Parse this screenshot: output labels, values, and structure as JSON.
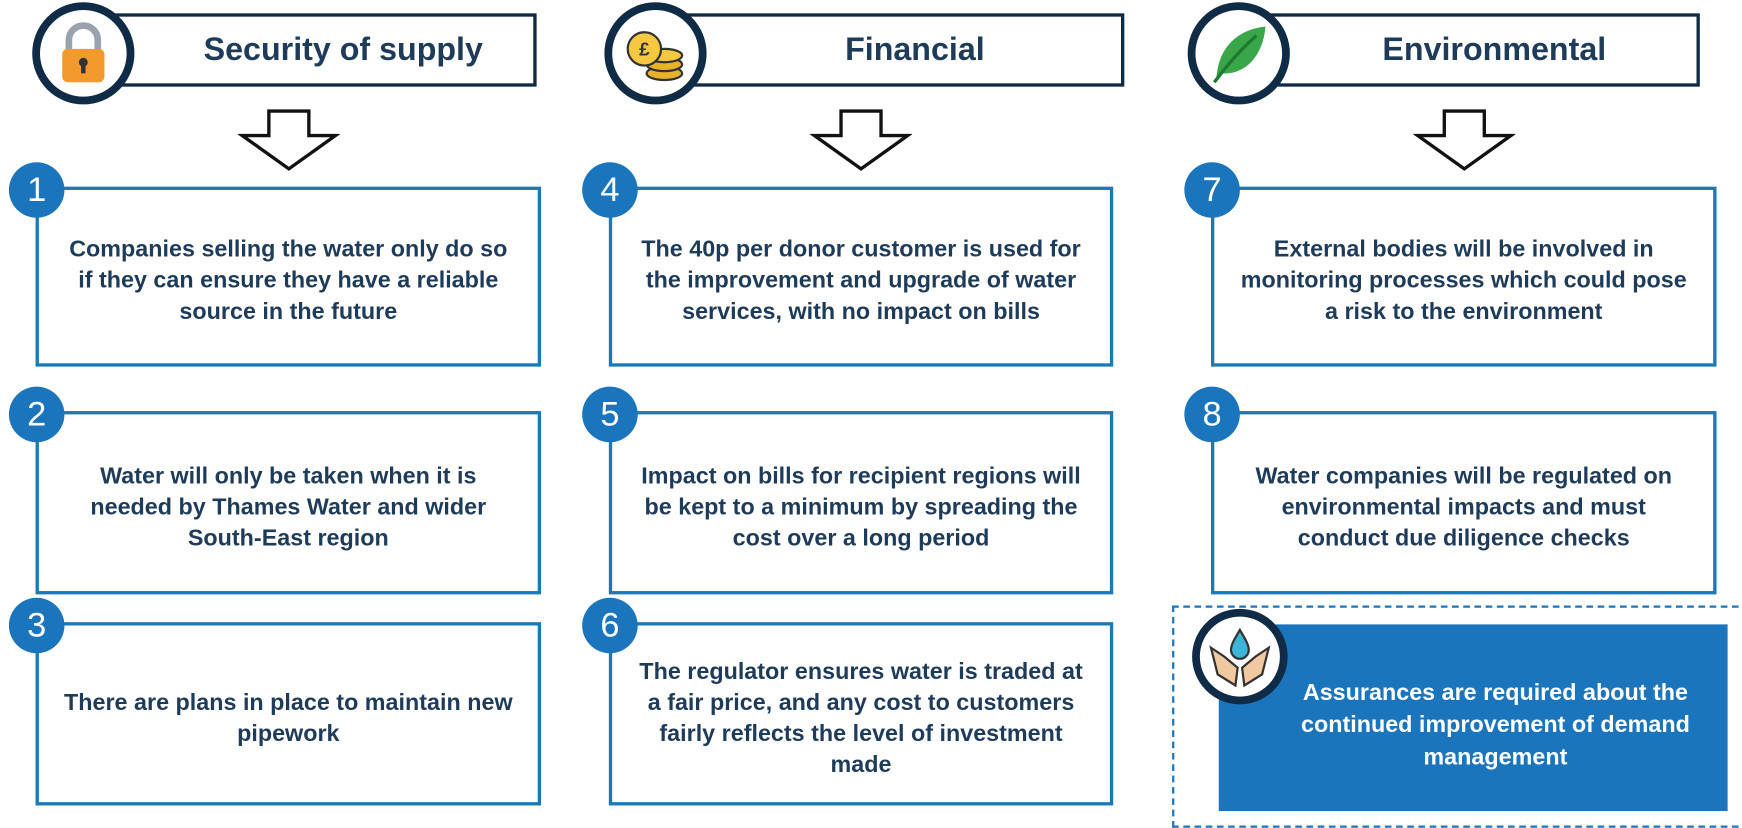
{
  "columns": [
    {
      "title": "Security of supply",
      "items": [
        {
          "number": 1,
          "text": "Companies selling the water only do so if they can ensure they have a reliable source in the future"
        },
        {
          "number": 2,
          "text": "Water will only be taken when it is needed by Thames Water and wider South-East region"
        },
        {
          "number": 3,
          "text": "There are plans in place to maintain new pipework"
        }
      ]
    },
    {
      "title": "Financial",
      "items": [
        {
          "number": 4,
          "text": "The 40p per donor customer is used for the improvement and upgrade of water services, with no impact on bills"
        },
        {
          "number": 5,
          "text": "Impact on bills for recipient regions will be kept to a minimum by spreading the cost over a long period"
        },
        {
          "number": 6,
          "text": "The regulator ensures water is traded at a fair price, and any cost to customers fairly reflects the level of investment made"
        }
      ]
    },
    {
      "title": "Environmental",
      "items": [
        {
          "number": 7,
          "text": "External bodies will be involved in monitoring processes which could pose a risk to the environment"
        },
        {
          "number": 8,
          "text": "Water companies will be regulated on environmental impacts and must conduct due diligence checks"
        }
      ]
    }
  ],
  "callout": "Assurances are required about the continued improvement of demand management"
}
